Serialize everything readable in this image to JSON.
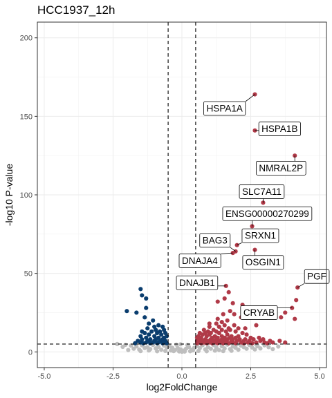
{
  "chart_data": {
    "type": "scatter",
    "title": "HCC1937_12h",
    "xlabel": "log2FoldChange",
    "ylabel": "-log10 P-value",
    "xlim": [
      -5.25,
      5.25
    ],
    "ylim": [
      -10,
      210
    ],
    "xticks": [
      -5.0,
      -2.5,
      0.0,
      2.5,
      5.0
    ],
    "xtick_labels": [
      "-5.0",
      "-2.5",
      "0.0",
      "2.5",
      "5.0"
    ],
    "yticks": [
      0,
      50,
      100,
      150,
      200
    ],
    "ytick_labels": [
      "0",
      "50",
      "100",
      "150",
      "200"
    ],
    "grid": true,
    "thresholds": {
      "log2fc": [
        -0.5,
        0.5
      ],
      "neg_log10_p": 5
    },
    "colors": {
      "up": "#B03A48",
      "down": "#0A3D6E",
      "ns": "#BEBEBE"
    },
    "points": {
      "up": [
        [
          2.65,
          164
        ],
        [
          2.65,
          141
        ],
        [
          4.1,
          125
        ],
        [
          2.95,
          95
        ],
        [
          2.55,
          80
        ],
        [
          2.0,
          68
        ],
        [
          2.65,
          65
        ],
        [
          1.85,
          63
        ],
        [
          1.95,
          64
        ],
        [
          4.2,
          41
        ],
        [
          4.15,
          33
        ],
        [
          4.0,
          28
        ],
        [
          3.75,
          25
        ],
        [
          4.1,
          21
        ],
        [
          3.6,
          22
        ],
        [
          1.6,
          42
        ],
        [
          1.7,
          38
        ],
        [
          1.55,
          34
        ],
        [
          1.3,
          32
        ],
        [
          1.85,
          31
        ],
        [
          2.2,
          30
        ],
        [
          2.35,
          27
        ],
        [
          1.75,
          26
        ],
        [
          1.9,
          24
        ],
        [
          1.5,
          24
        ],
        [
          2.55,
          22
        ],
        [
          2.15,
          22
        ],
        [
          1.3,
          21
        ],
        [
          1.65,
          20
        ],
        [
          1.45,
          19
        ],
        [
          1.0,
          18
        ],
        [
          1.25,
          18
        ],
        [
          1.55,
          17
        ],
        [
          1.9,
          17
        ],
        [
          2.7,
          17
        ],
        [
          1.0,
          16
        ],
        [
          1.35,
          16
        ],
        [
          1.7,
          15
        ],
        [
          2.05,
          15
        ],
        [
          2.3,
          15
        ],
        [
          0.8,
          14
        ],
        [
          1.15,
          14
        ],
        [
          1.45,
          14
        ],
        [
          1.75,
          14
        ],
        [
          0.95,
          13
        ],
        [
          1.25,
          13
        ],
        [
          1.6,
          13
        ],
        [
          1.95,
          13
        ],
        [
          2.2,
          12
        ],
        [
          0.65,
          12
        ],
        [
          0.85,
          12
        ],
        [
          1.05,
          12
        ],
        [
          1.35,
          12
        ],
        [
          1.65,
          11
        ],
        [
          2.35,
          11
        ],
        [
          0.75,
          11
        ],
        [
          1.0,
          11
        ],
        [
          1.2,
          10
        ],
        [
          1.45,
          10
        ],
        [
          1.8,
          10
        ],
        [
          2.05,
          10
        ],
        [
          0.6,
          10
        ],
        [
          0.9,
          10
        ],
        [
          1.1,
          9
        ],
        [
          1.3,
          9
        ],
        [
          1.55,
          9
        ],
        [
          1.75,
          9
        ],
        [
          1.95,
          9
        ],
        [
          2.5,
          9
        ],
        [
          2.8,
          9
        ],
        [
          0.7,
          9
        ],
        [
          0.55,
          9
        ],
        [
          0.65,
          8
        ],
        [
          0.85,
          8
        ],
        [
          1.05,
          8
        ],
        [
          1.25,
          8
        ],
        [
          1.45,
          8
        ],
        [
          1.65,
          8
        ],
        [
          1.85,
          8
        ],
        [
          2.1,
          8
        ],
        [
          2.3,
          8
        ],
        [
          2.6,
          8
        ],
        [
          2.95,
          8
        ],
        [
          3.2,
          7
        ],
        [
          0.55,
          7
        ],
        [
          0.75,
          7
        ],
        [
          0.95,
          7
        ],
        [
          1.15,
          7
        ],
        [
          1.35,
          7
        ],
        [
          1.55,
          7
        ],
        [
          1.8,
          7
        ],
        [
          2.0,
          7
        ],
        [
          2.25,
          7
        ],
        [
          2.45,
          7
        ],
        [
          2.85,
          7
        ],
        [
          3.55,
          7
        ],
        [
          0.6,
          6
        ],
        [
          0.8,
          6
        ],
        [
          1.0,
          6
        ],
        [
          1.2,
          6
        ],
        [
          1.4,
          6
        ],
        [
          1.6,
          6
        ],
        [
          1.85,
          6
        ],
        [
          2.15,
          6
        ],
        [
          2.4,
          6
        ],
        [
          2.7,
          6
        ],
        [
          3.0,
          6
        ],
        [
          3.3,
          6
        ],
        [
          3.75,
          6
        ],
        [
          0.55,
          5.5
        ],
        [
          0.7,
          5.5
        ],
        [
          0.9,
          5.5
        ],
        [
          1.1,
          5.5
        ],
        [
          1.3,
          5.5
        ],
        [
          1.5,
          5.5
        ],
        [
          1.7,
          5.5
        ],
        [
          1.95,
          5.5
        ],
        [
          2.25,
          5.5
        ],
        [
          2.55,
          5.5
        ],
        [
          3.1,
          5.5
        ]
      ],
      "down": [
        [
          -1.5,
          40
        ],
        [
          -1.45,
          36
        ],
        [
          -1.3,
          34
        ],
        [
          -1.3,
          28
        ],
        [
          -2.0,
          26
        ],
        [
          -1.65,
          25
        ],
        [
          -1.35,
          22
        ],
        [
          -1.05,
          20
        ],
        [
          -1.2,
          18
        ],
        [
          -0.85,
          17
        ],
        [
          -1.0,
          16
        ],
        [
          -0.7,
          16
        ],
        [
          -1.25,
          15
        ],
        [
          -0.95,
          14
        ],
        [
          -0.65,
          14
        ],
        [
          -1.45,
          13
        ],
        [
          -1.1,
          13
        ],
        [
          -0.8,
          13
        ],
        [
          -1.35,
          12
        ],
        [
          -0.9,
          12
        ],
        [
          -0.6,
          12
        ],
        [
          -1.2,
          11
        ],
        [
          -0.75,
          11
        ],
        [
          -1.5,
          10
        ],
        [
          -1.0,
          10
        ],
        [
          -0.55,
          10
        ],
        [
          -1.3,
          9
        ],
        [
          -0.85,
          9
        ],
        [
          -0.65,
          9
        ],
        [
          -1.45,
          8
        ],
        [
          -1.15,
          8
        ],
        [
          -0.95,
          8
        ],
        [
          -0.7,
          8
        ],
        [
          -1.6,
          7
        ],
        [
          -1.25,
          7
        ],
        [
          -1.0,
          7
        ],
        [
          -0.8,
          7
        ],
        [
          -0.6,
          7
        ],
        [
          -1.5,
          6
        ],
        [
          -1.3,
          6
        ],
        [
          -1.05,
          6
        ],
        [
          -0.85,
          6
        ],
        [
          -0.65,
          6
        ],
        [
          -1.7,
          5.5
        ],
        [
          -1.4,
          5.5
        ],
        [
          -1.15,
          5.5
        ],
        [
          -0.9,
          5.5
        ],
        [
          -0.7,
          5.5
        ],
        [
          -0.55,
          5.5
        ]
      ],
      "ns": [
        [
          -2.35,
          5
        ],
        [
          -2.05,
          4.5
        ],
        [
          -1.85,
          4
        ],
        [
          -1.65,
          3.5
        ],
        [
          -1.45,
          4.2
        ],
        [
          -1.25,
          3
        ],
        [
          -1.05,
          4.4
        ],
        [
          -0.85,
          3.2
        ],
        [
          -0.65,
          4
        ],
        [
          -1.75,
          2
        ],
        [
          -1.55,
          1.5
        ],
        [
          -1.35,
          2.5
        ],
        [
          -1.15,
          1.8
        ],
        [
          -0.95,
          2.2
        ],
        [
          -0.75,
          1.4
        ],
        [
          -0.55,
          2.8
        ],
        [
          -0.45,
          3.6
        ],
        [
          -0.35,
          2.6
        ],
        [
          -0.25,
          1.2
        ],
        [
          -0.15,
          2.4
        ],
        [
          -0.05,
          1.6
        ],
        [
          0.05,
          0.8
        ],
        [
          0.15,
          2
        ],
        [
          0.25,
          3.2
        ],
        [
          0.35,
          1.4
        ],
        [
          0.45,
          2.6
        ],
        [
          -0.3,
          0.5
        ],
        [
          0.3,
          0.4
        ],
        [
          -0.1,
          0.3
        ],
        [
          0.1,
          0.2
        ],
        [
          -0.4,
          0.9
        ],
        [
          0.4,
          1
        ],
        [
          -0.2,
          4.6
        ],
        [
          0.2,
          4.4
        ],
        [
          -0.05,
          4.8
        ],
        [
          0.0,
          0.1
        ],
        [
          0.55,
          3.8
        ],
        [
          0.65,
          2.4
        ],
        [
          0.75,
          4.2
        ],
        [
          0.85,
          1.6
        ],
        [
          0.95,
          3
        ],
        [
          1.05,
          2
        ],
        [
          1.15,
          4.4
        ],
        [
          1.25,
          2.8
        ],
        [
          1.35,
          1.2
        ],
        [
          1.45,
          3.6
        ],
        [
          1.55,
          2.2
        ],
        [
          1.65,
          4.6
        ],
        [
          1.75,
          1.8
        ],
        [
          1.85,
          3.4
        ],
        [
          1.95,
          2.6
        ],
        [
          2.05,
          1.4
        ],
        [
          2.15,
          4
        ],
        [
          2.25,
          3
        ],
        [
          2.35,
          2
        ],
        [
          2.45,
          4.4
        ],
        [
          2.55,
          2.8
        ],
        [
          2.65,
          1.6
        ],
        [
          2.75,
          3.6
        ],
        [
          2.85,
          2.2
        ],
        [
          3.0,
          4.2
        ],
        [
          3.15,
          3
        ],
        [
          3.3,
          1.8
        ],
        [
          3.5,
          3.4
        ],
        [
          0.6,
          0.6
        ],
        [
          0.9,
          0.4
        ],
        [
          1.2,
          0.8
        ],
        [
          1.5,
          0.5
        ],
        [
          1.8,
          0.7
        ],
        [
          -0.6,
          0.6
        ],
        [
          -0.9,
          0.4
        ],
        [
          -1.2,
          0.9
        ],
        [
          -1.5,
          0.5
        ],
        [
          -2.15,
          3.2
        ],
        [
          -1.95,
          1.2
        ],
        [
          2.0,
          4.8
        ],
        [
          2.7,
          4.6
        ]
      ]
    },
    "labels": [
      {
        "text": "HSPA1A",
        "anchor": [
          2.65,
          164
        ],
        "at": [
          1.55,
          155
        ]
      },
      {
        "text": "HSPA1B",
        "anchor": [
          2.65,
          141
        ],
        "at": [
          3.55,
          142
        ]
      },
      {
        "text": "NMRAL2P",
        "anchor": [
          4.1,
          125
        ],
        "at": [
          3.6,
          117
        ]
      },
      {
        "text": "SLC7A11",
        "anchor": [
          2.95,
          95
        ],
        "at": [
          2.9,
          102
        ]
      },
      {
        "text": "ENSG00000270299",
        "anchor": [
          2.55,
          80
        ],
        "at": [
          3.1,
          88
        ]
      },
      {
        "text": "SRXN1",
        "anchor": [
          2.0,
          68
        ],
        "at": [
          2.85,
          74
        ]
      },
      {
        "text": "BAG3",
        "anchor": [
          1.95,
          64
        ],
        "at": [
          1.2,
          71
        ]
      },
      {
        "text": "DNAJA4",
        "anchor": [
          1.85,
          63
        ],
        "at": [
          0.65,
          58
        ]
      },
      {
        "text": "OSGIN1",
        "anchor": [
          2.65,
          65
        ],
        "at": [
          2.95,
          57
        ]
      },
      {
        "text": "PGF",
        "anchor": [
          4.2,
          41
        ],
        "at": [
          4.9,
          48
        ]
      },
      {
        "text": "DNAJB1",
        "anchor": [
          1.6,
          42
        ],
        "at": [
          0.55,
          44
        ]
      },
      {
        "text": "CRYAB",
        "anchor": [
          4.0,
          28
        ],
        "at": [
          2.8,
          25
        ]
      }
    ]
  }
}
